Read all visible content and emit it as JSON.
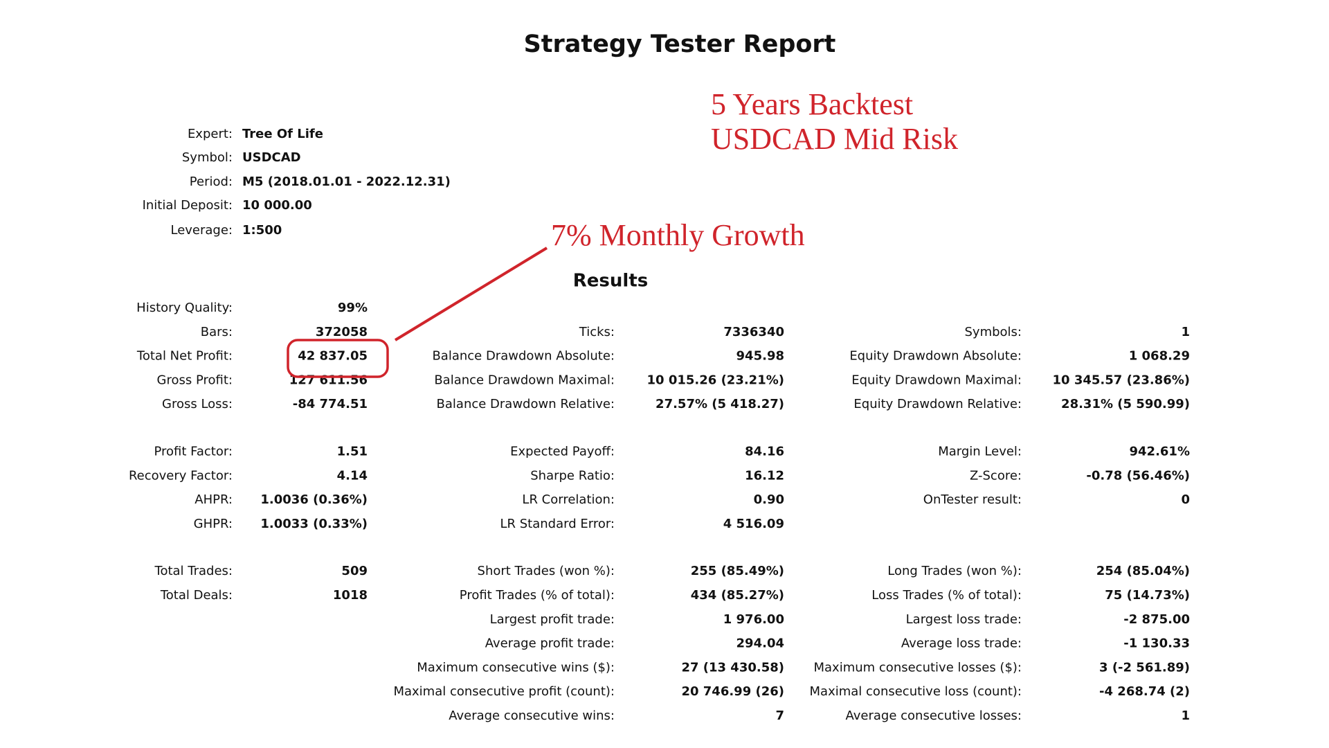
{
  "title": "Strategy Tester Report",
  "annotations": {
    "backtest": "5 Years Backtest",
    "pair": "USDCAD Mid Risk",
    "growth": "7% Monthly Growth"
  },
  "header": {
    "fields": [
      {
        "label": "Expert:",
        "value": "Tree Of Life"
      },
      {
        "label": "Symbol:",
        "value": "USDCAD"
      },
      {
        "label": "Period:",
        "value": "M5 (2018.01.01 - 2022.12.31)"
      },
      {
        "label": "Initial Deposit:",
        "value": "10 000.00"
      },
      {
        "label": "Leverage:",
        "value": "1:500"
      }
    ]
  },
  "results": {
    "title": "Results",
    "groups": [
      {
        "rows": [
          [
            {
              "label": "History Quality:",
              "value": "99%"
            },
            null,
            null
          ],
          [
            {
              "label": "Bars:",
              "value": "372058"
            },
            {
              "label": "Ticks:",
              "value": "7336340"
            },
            {
              "label": "Symbols:",
              "value": "1"
            }
          ],
          [
            {
              "label": "Total Net Profit:",
              "value": "42 837.05"
            },
            {
              "label": "Balance Drawdown Absolute:",
              "value": "945.98"
            },
            {
              "label": "Equity Drawdown Absolute:",
              "value": "1 068.29"
            }
          ],
          [
            {
              "label": "Gross Profit:",
              "value": "127 611.56"
            },
            {
              "label": "Balance Drawdown Maximal:",
              "value": "10 015.26 (23.21%)"
            },
            {
              "label": "Equity Drawdown Maximal:",
              "value": "10 345.57 (23.86%)"
            }
          ],
          [
            {
              "label": "Gross Loss:",
              "value": "-84 774.51"
            },
            {
              "label": "Balance Drawdown Relative:",
              "value": "27.57% (5 418.27)"
            },
            {
              "label": "Equity Drawdown Relative:",
              "value": "28.31% (5 590.99)"
            }
          ]
        ]
      },
      {
        "rows": [
          [
            {
              "label": "Profit Factor:",
              "value": "1.51"
            },
            {
              "label": "Expected Payoff:",
              "value": "84.16"
            },
            {
              "label": "Margin Level:",
              "value": "942.61%"
            }
          ],
          [
            {
              "label": "Recovery Factor:",
              "value": "4.14"
            },
            {
              "label": "Sharpe Ratio:",
              "value": "16.12"
            },
            {
              "label": "Z-Score:",
              "value": "-0.78 (56.46%)"
            }
          ],
          [
            {
              "label": "AHPR:",
              "value": "1.0036 (0.36%)"
            },
            {
              "label": "LR Correlation:",
              "value": "0.90"
            },
            {
              "label": "OnTester result:",
              "value": "0"
            }
          ],
          [
            {
              "label": "GHPR:",
              "value": "1.0033 (0.33%)"
            },
            {
              "label": "LR Standard Error:",
              "value": "4 516.09"
            },
            null
          ]
        ]
      },
      {
        "rows": [
          [
            {
              "label": "Total Trades:",
              "value": "509"
            },
            {
              "label": "Short Trades (won %):",
              "value": "255 (85.49%)"
            },
            {
              "label": "Long Trades (won %):",
              "value": "254 (85.04%)"
            }
          ],
          [
            {
              "label": "Total Deals:",
              "value": "1018"
            },
            {
              "label": "Profit Trades (% of total):",
              "value": "434 (85.27%)"
            },
            {
              "label": "Loss Trades (% of total):",
              "value": "75 (14.73%)"
            }
          ],
          [
            null,
            {
              "label": "Largest profit trade:",
              "value": "1 976.00"
            },
            {
              "label": "Largest loss trade:",
              "value": "-2 875.00"
            }
          ],
          [
            null,
            {
              "label": "Average profit trade:",
              "value": "294.04"
            },
            {
              "label": "Average loss trade:",
              "value": "-1 130.33"
            }
          ],
          [
            null,
            {
              "label": "Maximum consecutive wins ($):",
              "value": "27 (13 430.58)"
            },
            {
              "label": "Maximum consecutive losses ($):",
              "value": "3 (-2 561.89)"
            }
          ],
          [
            null,
            {
              "label": "Maximal consecutive profit (count):",
              "value": "20 746.99 (26)"
            },
            {
              "label": "Maximal consecutive loss (count):",
              "value": "-4 268.74 (2)"
            }
          ],
          [
            null,
            {
              "label": "Average consecutive wins:",
              "value": "7"
            },
            {
              "label": "Average consecutive losses:",
              "value": "1"
            }
          ]
        ]
      }
    ]
  }
}
